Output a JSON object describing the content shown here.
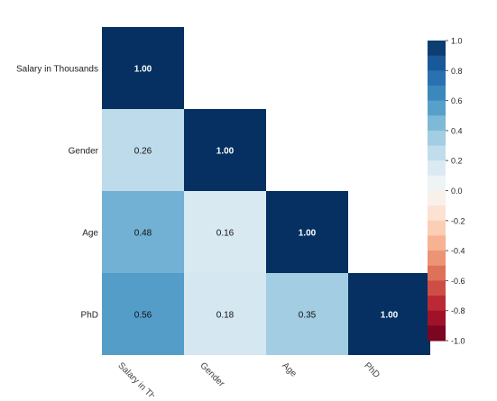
{
  "chart_data": {
    "type": "heatmap",
    "title": "",
    "xlabel": "",
    "ylabel": "",
    "row_labels": [
      "Salary in Thousands",
      "Gender",
      "Age",
      "PhD"
    ],
    "col_labels": [
      "Salary in Th",
      "Gender",
      "Age",
      "PhD"
    ],
    "values": [
      [
        1.0,
        null,
        null,
        null
      ],
      [
        0.26,
        1.0,
        null,
        null
      ],
      [
        0.48,
        0.16,
        1.0,
        null
      ],
      [
        0.56,
        0.18,
        0.35,
        1.0
      ]
    ],
    "cell_labels": [
      [
        "1.00",
        "",
        "",
        ""
      ],
      [
        "0.26",
        "1.00",
        "",
        ""
      ],
      [
        "0.48",
        "0.16",
        "1.00",
        ""
      ],
      [
        "0.56",
        "0.18",
        "0.35",
        "1.00"
      ]
    ],
    "colorbar": {
      "range": [
        -1.0,
        1.0
      ],
      "ticks": [
        1.0,
        0.8,
        0.6,
        0.4,
        0.2,
        0.0,
        -0.2,
        -0.4,
        -0.6,
        -0.8,
        -1.0
      ],
      "tick_labels": [
        "1.0",
        "0.8",
        "0.6",
        "0.4",
        "0.2",
        "0.0",
        "-0.2",
        "-0.4",
        "-0.6",
        "-0.8",
        "-1.0"
      ],
      "steps": 20
    },
    "colors": {
      "scale": [
        "#67001f",
        "#b2182b",
        "#d6604d",
        "#f4a582",
        "#fddbc7",
        "#f7f7f7",
        "#d1e5f0",
        "#92c5de",
        "#4393c3",
        "#2166ac",
        "#053061"
      ],
      "text_dark": "#111111",
      "text_light": "#ffffff",
      "background": "#ffffff"
    }
  }
}
